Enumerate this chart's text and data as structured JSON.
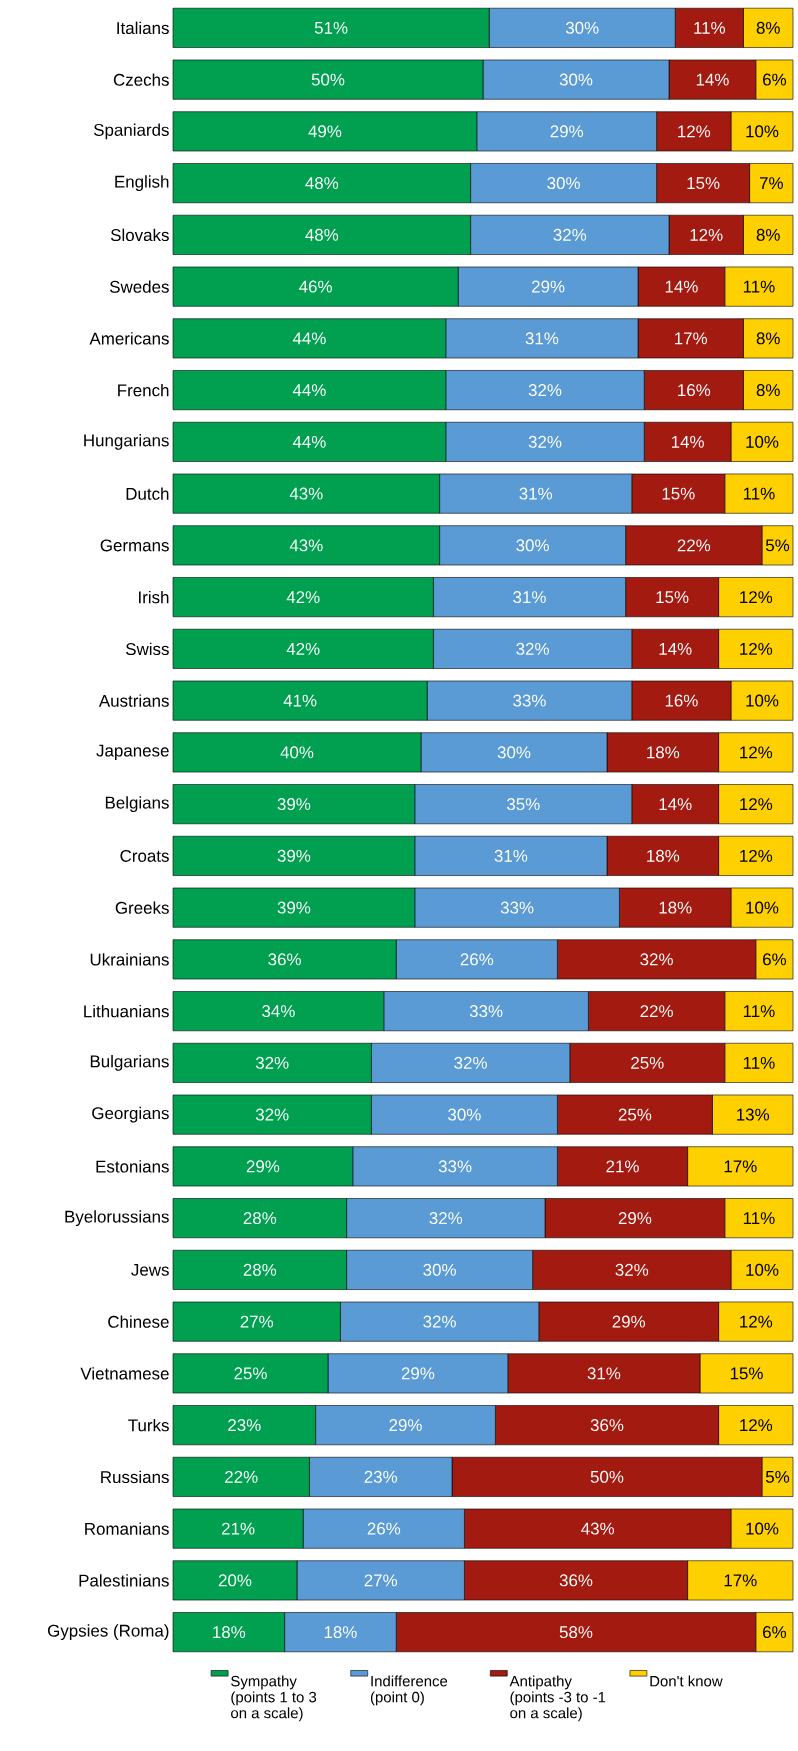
{
  "chart_data": {
    "type": "bar",
    "orientation": "horizontal",
    "stacked": true,
    "legend": "bottom",
    "tick_labels": "y",
    "categories": [
      "Italians",
      "Czechs",
      "Spaniards",
      "English",
      "Slovaks",
      "Swedes",
      "Americans",
      "French",
      "Hungarians",
      "Dutch",
      "Germans",
      "Irish",
      "Swiss",
      "Austrians",
      "Japanese",
      "Belgians",
      "Croats",
      "Greeks",
      "Ukrainians",
      "Lithuanians",
      "Bulgarians",
      "Georgians",
      "Estonians",
      "Byelorussians",
      "Jews",
      "Chinese",
      "Vietnamese",
      "Turks",
      "Russians",
      "Romanians",
      "Palestinians",
      "Gypsies (Roma)"
    ],
    "series": [
      {
        "name": "Sympathy (points 1 to 3 on a scale)",
        "color": "#00a050",
        "values": [
          51,
          50,
          49,
          48,
          48,
          46,
          44,
          44,
          44,
          43,
          43,
          42,
          42,
          41,
          40,
          39,
          39,
          39,
          36,
          34,
          32,
          32,
          29,
          28,
          28,
          27,
          25,
          23,
          22,
          21,
          20,
          18
        ],
        "value_labels": [
          "51%",
          "50%",
          "49%",
          "48%",
          "48%",
          "46%",
          "44%",
          "44%",
          "44%",
          "43%",
          "43%",
          "42%",
          "42%",
          "41%",
          "40%",
          "39%",
          "39%",
          "39%",
          "36%",
          "34%",
          "32%",
          "32%",
          "29%",
          "28%",
          "28%",
          "27%",
          "25%",
          "23%",
          "22%",
          "21%",
          "20%",
          "18%"
        ]
      },
      {
        "name": "Indifference (point 0)",
        "color": "#5b9bd5",
        "values": [
          30,
          30,
          29,
          30,
          32,
          29,
          31,
          32,
          32,
          31,
          30,
          31,
          32,
          33,
          30,
          35,
          31,
          33,
          26,
          33,
          32,
          30,
          33,
          32,
          30,
          32,
          29,
          29,
          23,
          26,
          27,
          18
        ],
        "value_labels": [
          "30%",
          "30%",
          "29%",
          "30%",
          "32%",
          "29%",
          "31%",
          "32%",
          "32%",
          "31%",
          "30%",
          "31%",
          "32%",
          "33%",
          "30%",
          "35%",
          "31%",
          "33%",
          "26%",
          "33%",
          "32%",
          "30%",
          "33%",
          "32%",
          "30%",
          "32%",
          "29%",
          "29%",
          "23%",
          "26%",
          "27%",
          "18%"
        ]
      },
      {
        "name": "Antipathy (points -3 to -1 on a scale)",
        "color": "#a31a10",
        "values": [
          11,
          14,
          12,
          15,
          12,
          14,
          17,
          16,
          14,
          15,
          22,
          15,
          14,
          16,
          18,
          14,
          18,
          18,
          32,
          22,
          25,
          25,
          21,
          29,
          32,
          29,
          31,
          36,
          50,
          43,
          36,
          58
        ],
        "value_labels": [
          "11%",
          "14%",
          "12%",
          "15%",
          "12%",
          "14%",
          "17%",
          "16%",
          "14%",
          "15%",
          "22%",
          "15%",
          "14%",
          "16%",
          "18%",
          "14%",
          "18%",
          "18%",
          "32%",
          "22%",
          "25%",
          "25%",
          "21%",
          "29%",
          "32%",
          "29%",
          "31%",
          "36%",
          "50%",
          "43%",
          "36%",
          "58%"
        ]
      },
      {
        "name": "Don't know",
        "color": "#ffd000",
        "values": [
          8,
          6,
          10,
          7,
          8,
          11,
          8,
          8,
          10,
          11,
          5,
          12,
          12,
          10,
          12,
          12,
          12,
          10,
          6,
          11,
          11,
          13,
          17,
          11,
          10,
          12,
          15,
          12,
          5,
          10,
          17,
          6
        ],
        "value_labels": [
          "8%",
          "6%",
          "10%",
          "7%",
          "8%",
          "11%",
          "8%",
          "8%",
          "10%",
          "11%",
          "5%",
          "12%",
          "12%",
          "10%",
          "12%",
          "12%",
          "12%",
          "10%",
          "6%",
          "11%",
          "11%",
          "13%",
          "17%",
          "11%",
          "10%",
          "12%",
          "15%",
          "12%",
          "5%",
          "10%",
          "17%",
          "6%"
        ]
      }
    ]
  }
}
